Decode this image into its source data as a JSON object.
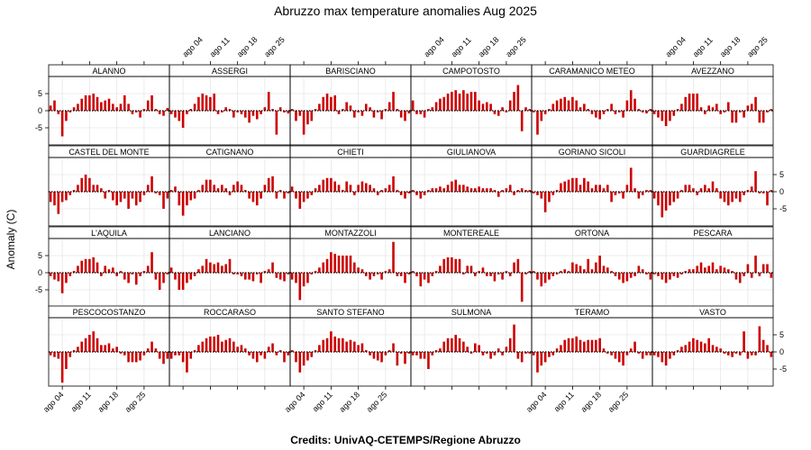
{
  "title": "Abruzzo max temperature anomalies Aug 2025",
  "credits": "Credits: UnivAQ-CETEMPS/Regione Abruzzo",
  "chart_data": {
    "type": "bar",
    "layout": "lattice 6 columns x 4 rows",
    "ylabel": "Anomaly (C)",
    "x_tick_labels": [
      "ago 04",
      "ago 11",
      "ago 18",
      "ago 25"
    ],
    "x_tick_days": [
      4,
      11,
      18,
      25
    ],
    "days": [
      1,
      2,
      3,
      4,
      5,
      6,
      7,
      8,
      9,
      10,
      11,
      12,
      13,
      14,
      15,
      16,
      17,
      18,
      19,
      20,
      21,
      22,
      23,
      24,
      25,
      26,
      27,
      28,
      29,
      30,
      31
    ],
    "y_ticks": [
      -5,
      0,
      5
    ],
    "ylim": [
      -10,
      10
    ],
    "bar_color": "#cc0000",
    "grid": true,
    "series": [
      {
        "name": "ALANNO",
        "values": [
          1.5,
          3,
          -1,
          -7.5,
          -3,
          -0.5,
          1,
          2,
          3.5,
          4.5,
          4.5,
          5,
          4,
          2.5,
          3,
          3.5,
          2,
          1,
          2,
          4.5,
          2,
          -1,
          -0.5,
          -2,
          0.5,
          3,
          4.5,
          0.5,
          -1,
          -1.5,
          0.8
        ]
      },
      {
        "name": "ASSERGI",
        "values": [
          -1,
          -2,
          -3,
          -5,
          -1,
          0.5,
          2,
          4,
          5,
          4.5,
          4,
          5,
          -1,
          -0.5,
          1,
          0.5,
          -2,
          -0.5,
          -1,
          -2,
          -3.5,
          -1.5,
          -2.5,
          -1,
          1,
          5.5,
          0.5,
          -7,
          1,
          -0.5,
          -0.8
        ]
      },
      {
        "name": "BARISCIANO",
        "values": [
          0.5,
          -3,
          -1.5,
          -7,
          -4,
          -3,
          0.5,
          2,
          4,
          5,
          4,
          4.5,
          -1,
          0.5,
          2.5,
          1.5,
          -2,
          -0.5,
          -1.5,
          2,
          1,
          -2,
          -0.5,
          -2.5,
          0.5,
          2.5,
          5.5,
          0.5,
          -2,
          -3,
          -0.8
        ]
      },
      {
        "name": "CAMPOTOSTO",
        "values": [
          3,
          -1,
          -1,
          -2,
          0.5,
          1,
          2.5,
          3.5,
          4,
          5,
          5.5,
          6,
          5,
          6,
          5,
          5.5,
          5.5,
          3,
          2,
          2.5,
          2,
          -1,
          -1.5,
          1,
          -0.5,
          3,
          5.5,
          7.5,
          -6,
          1,
          0.5
        ]
      },
      {
        "name": "CARAMANICO METEO",
        "values": [
          -0.5,
          -7,
          -3,
          -1,
          0.5,
          2,
          3,
          3.5,
          4,
          3,
          4,
          3,
          1,
          2,
          0.5,
          -1,
          -2,
          -2.5,
          -1,
          0.5,
          2,
          -1,
          -0.5,
          -2,
          3,
          6,
          3.5,
          0.5,
          -0.5,
          -0.8,
          0.5
        ]
      },
      {
        "name": "AVEZZANO",
        "values": [
          -1,
          -2,
          -3,
          -4.5,
          -3,
          -1.5,
          0.5,
          2,
          4,
          5,
          5,
          5,
          1,
          -1,
          1.5,
          1,
          2,
          -1,
          -0.5,
          2.5,
          -3.5,
          -3.5,
          -0.5,
          -2,
          1.5,
          2,
          4,
          -3.5,
          -3.5,
          -0.5,
          0.5
        ]
      },
      {
        "name": "CASTEL DEL MONTE",
        "values": [
          -3,
          -4,
          -6.5,
          -3,
          -2.5,
          -1,
          0.5,
          2,
          4,
          5,
          4,
          2,
          2,
          1,
          -2,
          0.5,
          -2.5,
          -4,
          -3,
          -2,
          -5,
          -2,
          -4,
          -3,
          -1,
          2,
          4.5,
          -0.5,
          -1,
          -5,
          -2
        ]
      },
      {
        "name": "CATIGNANO",
        "values": [
          0.5,
          1.5,
          -4,
          -7,
          -4,
          -2.5,
          -2,
          0.5,
          2,
          3.5,
          3.5,
          2,
          1,
          2,
          1,
          -1,
          2,
          3,
          2,
          0.5,
          -2,
          -3,
          -4,
          -2,
          2,
          4,
          4.5,
          -2,
          0.5,
          -2,
          -0.5
        ]
      },
      {
        "name": "CHIETI",
        "values": [
          1.5,
          -2,
          -5,
          -3,
          -2,
          -1,
          1,
          2,
          3.5,
          4,
          4,
          3,
          2,
          0.5,
          3,
          2,
          -1,
          2,
          3,
          2.5,
          2,
          1,
          -1,
          0.5,
          1,
          2,
          4.5,
          0.5,
          -1,
          -2,
          -0.5
        ]
      },
      {
        "name": "GIULIANOVA",
        "values": [
          0.5,
          -1,
          -2,
          -1,
          0.5,
          1,
          1,
          1.5,
          1,
          2,
          3,
          3.5,
          2,
          2,
          1.5,
          1,
          1,
          1.5,
          1,
          1,
          1,
          0.5,
          -1.5,
          0.5,
          1,
          2,
          -1,
          0.5,
          1,
          0.5,
          0.5
        ]
      },
      {
        "name": "GORIANO SICOLI",
        "values": [
          -0.5,
          -1,
          -2,
          -6,
          -3,
          -1,
          0.5,
          2.5,
          3,
          3.5,
          4,
          4,
          2,
          4,
          3,
          1,
          2,
          2,
          1,
          2,
          -3,
          -1,
          -0.5,
          -2,
          2,
          7,
          1,
          -2,
          -1,
          0.5,
          0.5
        ]
      },
      {
        "name": "GUARDIAGRELE",
        "values": [
          -2,
          -4,
          -7.5,
          -5.5,
          -4,
          -3,
          -2,
          0.5,
          2,
          2,
          1,
          -1,
          1,
          2,
          1,
          3,
          1,
          -2,
          -3,
          -4,
          -3,
          -2,
          -3,
          -1,
          0.5,
          1.5,
          6,
          -0.5,
          -0.5,
          -4,
          0.5
        ]
      },
      {
        "name": "L'AQUILA",
        "values": [
          -1,
          -2,
          -2.5,
          -6,
          -3,
          -1,
          0.5,
          2,
          3.5,
          4,
          4,
          4.5,
          3,
          -1,
          2,
          1,
          1.5,
          -1,
          0.5,
          -2,
          -3,
          -0.5,
          -3.5,
          -1,
          0.5,
          2,
          6,
          -2,
          -5,
          -3,
          -0.5
        ]
      },
      {
        "name": "LANCIANO",
        "values": [
          1.5,
          -2,
          -5,
          -5,
          -3,
          -2,
          -1,
          1,
          2,
          4,
          3,
          2.5,
          3,
          2,
          2.5,
          4,
          -0.5,
          -0.5,
          -1,
          -2,
          -2,
          -2.5,
          -0.5,
          -3,
          0.5,
          1,
          3,
          -1.5,
          -2,
          -2.5,
          -0.5
        ]
      },
      {
        "name": "MONTAZZOLI",
        "values": [
          -2,
          -3,
          -8,
          -4,
          -3,
          -0.5,
          0.5,
          1.5,
          3,
          4,
          6,
          5.5,
          5,
          5,
          5,
          5,
          3,
          1.5,
          1,
          -1,
          -2,
          -1,
          -0.5,
          -2,
          0.5,
          1,
          9,
          -1,
          -1,
          -3,
          -0.5
        ]
      },
      {
        "name": "MONTEREALE",
        "values": [
          0.5,
          -1,
          -4,
          -2,
          -3,
          -1,
          0.5,
          2,
          4,
          4.5,
          4.5,
          4,
          4,
          -0.5,
          2,
          2,
          -1,
          0.5,
          1.5,
          -1,
          -1,
          -2.5,
          -0.5,
          -2,
          0.5,
          -1,
          3,
          4,
          -8.5,
          -0.5,
          0.5
        ]
      },
      {
        "name": "ORTONA",
        "values": [
          0.5,
          -2,
          -4,
          -3,
          -2,
          -1,
          -0.5,
          0.5,
          1,
          0.5,
          3,
          2.5,
          2,
          1,
          4,
          1,
          3,
          5,
          2,
          1.5,
          0.5,
          -1,
          -2,
          -3,
          -2.5,
          -1.5,
          -1,
          2,
          1,
          -0.5,
          -2
        ]
      },
      {
        "name": "PESCARA",
        "values": [
          -0.5,
          -1,
          -2,
          -3,
          -2,
          -1,
          -1.5,
          -0.5,
          0.5,
          1,
          1,
          2,
          3,
          1.5,
          2,
          3,
          1,
          2,
          1.5,
          1,
          0.5,
          -2,
          -3,
          -1,
          2.5,
          -1.5,
          5,
          -1,
          2.5,
          2.5,
          -1.5
        ]
      },
      {
        "name": "PESCOCOSTANZO",
        "values": [
          -1,
          -1.5,
          -2,
          -9,
          -5,
          -1.5,
          0.5,
          1.5,
          3,
          4,
          5,
          6,
          4,
          2,
          2,
          2.5,
          1,
          1.5,
          -0.5,
          -1,
          -3,
          -3,
          -3,
          -2.5,
          -1,
          1,
          3,
          1,
          -2,
          -3.5,
          -2
        ]
      },
      {
        "name": "ROCCARASO",
        "values": [
          -2,
          -1,
          -1,
          -3,
          -6,
          -2,
          0.5,
          2,
          3,
          4,
          4.5,
          4.5,
          5,
          3,
          3.5,
          4,
          3,
          1.5,
          2,
          1,
          -1,
          -2,
          -3,
          -1,
          -2,
          1.5,
          2.5,
          -1,
          0.5,
          -3,
          -1
        ]
      },
      {
        "name": "SANTO STEFANO",
        "values": [
          0.5,
          -3,
          -6,
          -4,
          -2.5,
          -1.5,
          0.5,
          2,
          3.5,
          4,
          6,
          4.5,
          4,
          4,
          3,
          3.5,
          3,
          2,
          2.5,
          0.5,
          -1,
          -2,
          -2.5,
          -3,
          -1,
          0.5,
          2.5,
          -4,
          -0.5,
          -3.5,
          -0.5
        ]
      },
      {
        "name": "SULMONA",
        "values": [
          -1,
          -1,
          -2,
          -2,
          -5,
          -1,
          0.5,
          1,
          3,
          4,
          4,
          5,
          4,
          3,
          1.5,
          -0.5,
          2.5,
          2,
          -1,
          -0.5,
          -2,
          -1,
          1,
          -1,
          1.5,
          4,
          8,
          -2,
          -3,
          -0.5,
          -0.5
        ]
      },
      {
        "name": "TERAMO",
        "values": [
          -1,
          -6,
          -4,
          -3,
          -1.5,
          -1,
          1,
          2,
          3.5,
          4,
          4,
          4.5,
          3.5,
          3,
          3.5,
          3.5,
          3.5,
          4,
          1,
          -0.5,
          -1,
          -2,
          -3,
          -4,
          -1,
          1,
          3,
          -0.5,
          -2,
          -1,
          -1
        ]
      },
      {
        "name": "VASTO",
        "values": [
          -1,
          -1.5,
          -3,
          -4,
          -2,
          -1,
          0.5,
          1.5,
          2,
          3,
          4,
          3.5,
          3,
          2.5,
          4,
          2,
          1.5,
          1,
          -0.5,
          -1,
          -1.5,
          -0.5,
          -1,
          6,
          -2,
          -1,
          -1,
          7.5,
          3.5,
          2,
          -1.5
        ]
      }
    ]
  }
}
